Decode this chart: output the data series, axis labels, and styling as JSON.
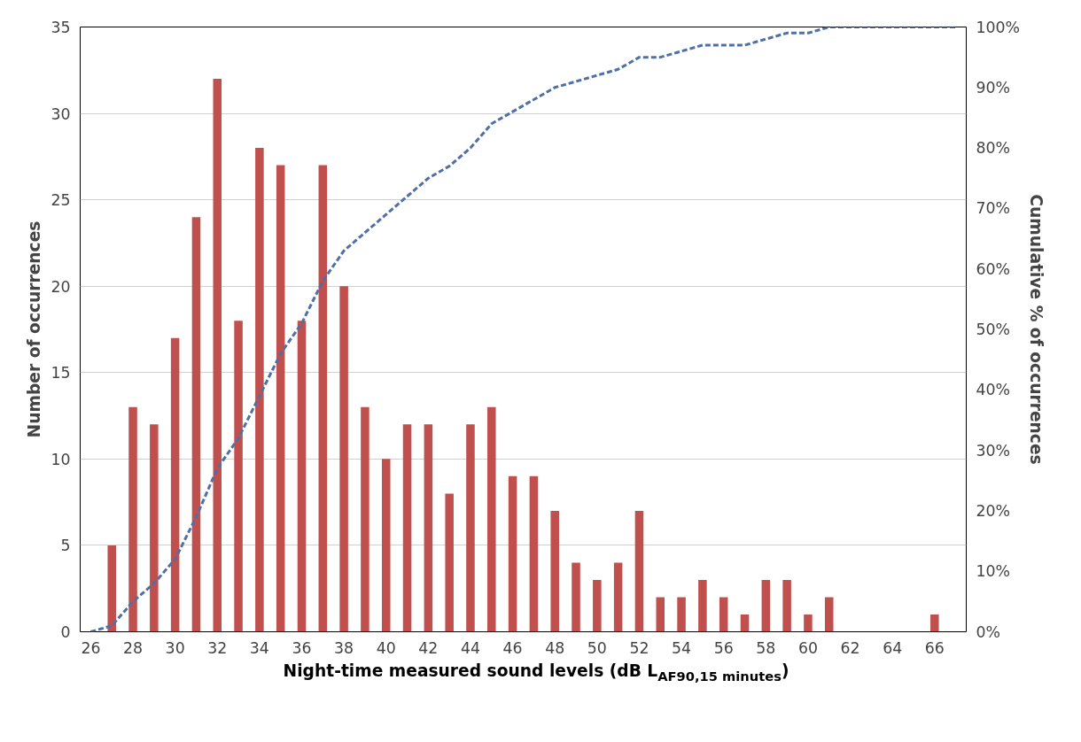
{
  "chart_data": {
    "type": "bar",
    "xlabel": "Night-time measured sound levels (dB L$_{AF90,15 minutes}$)",
    "ylabel": "Number of occurrences",
    "y2label": "Cumulative % of occurrences",
    "x": [
      26,
      27,
      28,
      29,
      30,
      31,
      32,
      33,
      34,
      35,
      36,
      37,
      38,
      39,
      40,
      41,
      42,
      43,
      44,
      45,
      46,
      47,
      48,
      49,
      50,
      51,
      52,
      53,
      54,
      55,
      56,
      57,
      58,
      59,
      60,
      61,
      62,
      63,
      64,
      65,
      66
    ],
    "series": [
      {
        "color": "#c0504d",
        "values": [
          0,
          5,
          13,
          12,
          17,
          24,
          32,
          18,
          28,
          27,
          18,
          27,
          20,
          13,
          10,
          12,
          12,
          8,
          12,
          13,
          9,
          9,
          7,
          4,
          3,
          4,
          7,
          2,
          2,
          3,
          2,
          1,
          3,
          3,
          1,
          2,
          0,
          0,
          0,
          0,
          1
        ]
      },
      {
        "type": "line",
        "axis": "y2",
        "color": "#4f6fa8",
        "line_style": "dashed",
        "x": [
          26,
          27,
          28,
          29,
          30,
          31,
          32,
          33,
          34,
          35,
          36,
          37,
          38,
          39,
          40,
          41,
          42,
          43,
          44,
          45,
          46,
          47,
          48,
          49,
          50,
          51,
          52,
          53,
          54,
          55,
          56,
          57,
          58,
          59,
          60,
          61,
          62,
          63,
          64,
          65,
          66,
          67
        ],
        "values": [
          0,
          1,
          5,
          8,
          12,
          19,
          27,
          32,
          39,
          46,
          51,
          58,
          63,
          66,
          69,
          72,
          75,
          77,
          80,
          84,
          86,
          88,
          90,
          91,
          92,
          93,
          95,
          95,
          96,
          97,
          97,
          97,
          98,
          99,
          99,
          100,
          100,
          100,
          100,
          100,
          100,
          100
        ]
      }
    ],
    "xlim": [
      25.5,
      67.5
    ],
    "xticks": [
      26,
      28,
      30,
      32,
      34,
      36,
      38,
      40,
      42,
      44,
      46,
      48,
      50,
      52,
      54,
      56,
      58,
      60,
      62,
      64,
      66
    ],
    "ylim": [
      0,
      35
    ],
    "yticks": [
      0,
      5,
      10,
      15,
      20,
      25,
      30,
      35
    ],
    "y2lim": [
      0,
      100
    ],
    "y2ticks": [
      {
        "value": 0,
        "label": "0%"
      },
      {
        "value": 10,
        "label": "10%"
      },
      {
        "value": 20,
        "label": "20%"
      },
      {
        "value": 30,
        "label": "30%"
      },
      {
        "value": 40,
        "label": "40%"
      },
      {
        "value": 50,
        "label": "50%"
      },
      {
        "value": 60,
        "label": "60%"
      },
      {
        "value": 70,
        "label": "70%"
      },
      {
        "value": 80,
        "label": "80%"
      },
      {
        "value": 90,
        "label": "90%"
      },
      {
        "value": 100,
        "label": "100%"
      }
    ],
    "grid": "y"
  }
}
